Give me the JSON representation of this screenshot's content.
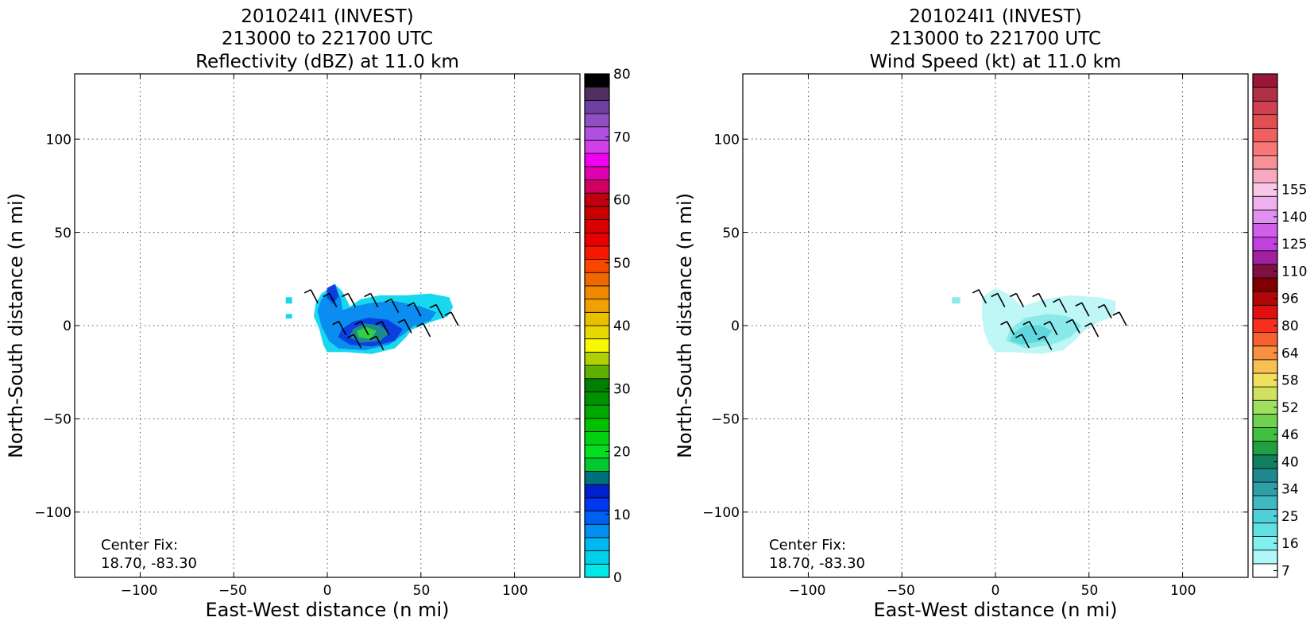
{
  "chart_data": [
    {
      "type": "heatmap",
      "title_lines": [
        "201024I1 (INVEST)",
        "213000 to 221700 UTC",
        "Reflectivity (dBZ) at 11.0 km"
      ],
      "xlabel": "East-West distance (n mi)",
      "ylabel": "North-South distance (n mi)",
      "xlim": [
        -135,
        135
      ],
      "ylim": [
        -135,
        135
      ],
      "xticks": [
        -100,
        -50,
        0,
        50,
        100
      ],
      "yticks": [
        100,
        50,
        0,
        -50,
        -100
      ],
      "xtick_labels": [
        "−100",
        "−50",
        "0",
        "50",
        "100"
      ],
      "ytick_labels": [
        "100",
        "50",
        "0",
        "−50",
        "−100"
      ],
      "grid": true,
      "center_fix_label": "Center Fix:",
      "center_fix_value": "18.70, -83.30",
      "colorbar": {
        "min": 0,
        "max": 80,
        "tick_values": [
          0,
          10,
          20,
          30,
          40,
          50,
          60,
          70,
          80
        ],
        "tick_labels": [
          "0",
          "10",
          "20",
          "30",
          "40",
          "50",
          "60",
          "70",
          "80"
        ],
        "colors": [
          "#00e8e8",
          "#00d0e8",
          "#00b8f0",
          "#0090f0",
          "#0060f0",
          "#0038f0",
          "#0020d0",
          "#00707a",
          "#00c830",
          "#00e020",
          "#00d010",
          "#00c000",
          "#00a800",
          "#009000",
          "#008000",
          "#60b000",
          "#b0d000",
          "#f8f800",
          "#e8d800",
          "#e8c000",
          "#f0a000",
          "#f08800",
          "#f06800",
          "#f84800",
          "#f81800",
          "#e80000",
          "#d80000",
          "#c80000",
          "#c00010",
          "#d00060",
          "#e000b0",
          "#f000f0",
          "#d040e8",
          "#b050e0",
          "#9050c0",
          "#7040a0",
          "#503060",
          "#000000"
        ]
      },
      "echo_regions": [
        {
          "level": "light_cyan",
          "color": "#18d8f0",
          "points": [
            [
              -3,
              17
            ],
            [
              4,
              22
            ],
            [
              8,
              18
            ],
            [
              12,
              10
            ],
            [
              18,
              14
            ],
            [
              28,
              16
            ],
            [
              42,
              16
            ],
            [
              55,
              17
            ],
            [
              65,
              15
            ],
            [
              67,
              10
            ],
            [
              64,
              5
            ],
            [
              55,
              2
            ],
            [
              50,
              0
            ],
            [
              45,
              -2
            ],
            [
              42,
              -6
            ],
            [
              36,
              -12
            ],
            [
              24,
              -15
            ],
            [
              10,
              -14
            ],
            [
              0,
              -14
            ],
            [
              -2,
              -10
            ],
            [
              -4,
              -2
            ],
            [
              -7,
              5
            ],
            [
              -6,
              12
            ]
          ]
        },
        {
          "level": "medium_blue",
          "color": "#0a8cf0",
          "points": [
            [
              -3,
              14
            ],
            [
              3,
              20
            ],
            [
              7,
              15
            ],
            [
              8,
              8
            ],
            [
              14,
              10
            ],
            [
              24,
              12
            ],
            [
              36,
              13
            ],
            [
              50,
              10
            ],
            [
              58,
              7
            ],
            [
              55,
              3
            ],
            [
              46,
              0
            ],
            [
              40,
              -5
            ],
            [
              33,
              -10
            ],
            [
              20,
              -13
            ],
            [
              6,
              -12
            ],
            [
              1,
              -8
            ],
            [
              -3,
              0
            ],
            [
              -5,
              8
            ]
          ]
        },
        {
          "level": "dark_blue",
          "color": "#0a40e0",
          "points": [
            [
              0,
              20
            ],
            [
              4,
              22
            ],
            [
              6,
              16
            ],
            [
              3,
              12
            ],
            [
              0,
              15
            ]
          ]
        },
        {
          "level": "dark_blue",
          "color": "#0a40e0",
          "points": [
            [
              8,
              -2
            ],
            [
              14,
              2
            ],
            [
              22,
              4
            ],
            [
              32,
              3
            ],
            [
              40,
              -2
            ],
            [
              36,
              -8
            ],
            [
              24,
              -11
            ],
            [
              12,
              -10
            ],
            [
              6,
              -6
            ]
          ]
        },
        {
          "level": "teal",
          "color": "#1d8a90",
          "points": [
            [
              14,
              -2
            ],
            [
              20,
              1
            ],
            [
              28,
              0
            ],
            [
              33,
              -4
            ],
            [
              28,
              -8
            ],
            [
              18,
              -9
            ],
            [
              12,
              -6
            ]
          ]
        },
        {
          "level": "green",
          "color": "#30d040",
          "points": [
            [
              16,
              -3
            ],
            [
              21,
              -1
            ],
            [
              26,
              -3
            ],
            [
              23,
              -7
            ],
            [
              17,
              -6
            ]
          ]
        },
        {
          "level": "speck",
          "color": "#18d8f0",
          "points": [
            [
              -22,
              15
            ],
            [
              -19,
              15
            ],
            [
              -19,
              12
            ],
            [
              -22,
              12
            ]
          ]
        },
        {
          "level": "speck",
          "color": "#18d8f0",
          "points": [
            [
              -22,
              6
            ],
            [
              -19,
              6
            ],
            [
              -19,
              4
            ],
            [
              -22,
              4
            ]
          ]
        }
      ],
      "wind_barbs": [
        [
          -5,
          12
        ],
        [
          5,
          10
        ],
        [
          15,
          10
        ],
        [
          27,
          10
        ],
        [
          38,
          7
        ],
        [
          50,
          5
        ],
        [
          62,
          4
        ],
        [
          70,
          0
        ],
        [
          10,
          -5
        ],
        [
          22,
          -5
        ],
        [
          33,
          -5
        ],
        [
          45,
          -4
        ],
        [
          55,
          -6
        ],
        [
          18,
          -12
        ],
        [
          30,
          -13
        ]
      ]
    },
    {
      "type": "heatmap",
      "title_lines": [
        "201024I1 (INVEST)",
        "213000 to 221700 UTC",
        "Wind Speed (kt) at 11.0 km"
      ],
      "xlabel": "East-West distance (n mi)",
      "ylabel": "North-South distance (n mi)",
      "xlim": [
        -135,
        135
      ],
      "ylim": [
        -135,
        135
      ],
      "xticks": [
        -100,
        -50,
        0,
        50,
        100
      ],
      "yticks": [
        100,
        50,
        0,
        -50,
        -100
      ],
      "xtick_labels": [
        "−100",
        "−50",
        "0",
        "50",
        "100"
      ],
      "ytick_labels": [
        "100",
        "50",
        "0",
        "−50",
        "−100"
      ],
      "grid": true,
      "center_fix_label": "Center Fix:",
      "center_fix_value": "18.70, -83.30",
      "colorbar": {
        "min": 0,
        "max": 160,
        "tick_values": [
          7,
          16,
          25,
          34,
          40,
          46,
          52,
          58,
          64,
          80,
          96,
          110,
          125,
          140,
          155
        ],
        "tick_labels": [
          "7",
          "16",
          "25",
          "34",
          "40",
          "46",
          "52",
          "58",
          "64",
          "80",
          "96",
          "110",
          "125",
          "140",
          "155"
        ],
        "tick_slots": [
          0.5,
          2.5,
          4.5,
          6.5,
          8.5,
          10.5,
          12.5,
          14.5,
          16.5,
          18.5,
          20.5,
          22.5,
          24.5,
          26.5,
          28.5
        ],
        "colors": [
          "#ffffff",
          "#b0f8f8",
          "#80f0f0",
          "#60e0e0",
          "#50d0d8",
          "#40b8c0",
          "#30a0a8",
          "#208890",
          "#108060",
          "#20a040",
          "#40c040",
          "#70d050",
          "#a0e060",
          "#d0e060",
          "#f0e060",
          "#f8c050",
          "#f89040",
          "#f86030",
          "#f83020",
          "#e01010",
          "#b00808",
          "#800000",
          "#801040",
          "#a020a0",
          "#c040e0",
          "#d060e8",
          "#e090f0",
          "#f0b0f0",
          "#f8c8e8",
          "#f8a8c0",
          "#f89098",
          "#f87878",
          "#f06060",
          "#e05050",
          "#d04050",
          "#b03048",
          "#981838"
        ]
      },
      "echo_regions": [
        {
          "level": "pale_cyan",
          "color": "#bff6f6",
          "points": [
            [
              -7,
              15
            ],
            [
              0,
              20
            ],
            [
              8,
              16
            ],
            [
              14,
              10
            ],
            [
              26,
              14
            ],
            [
              40,
              16
            ],
            [
              55,
              15
            ],
            [
              64,
              13
            ],
            [
              64,
              6
            ],
            [
              55,
              2
            ],
            [
              48,
              -2
            ],
            [
              42,
              -8
            ],
            [
              36,
              -13
            ],
            [
              24,
              -15
            ],
            [
              10,
              -14
            ],
            [
              0,
              -14
            ],
            [
              -3,
              -10
            ],
            [
              -6,
              -3
            ],
            [
              -7,
              5
            ]
          ]
        },
        {
          "level": "light_cyan",
          "color": "#8aeaea",
          "points": [
            [
              8,
              -2
            ],
            [
              16,
              4
            ],
            [
              28,
              6
            ],
            [
              38,
              5
            ],
            [
              46,
              0
            ],
            [
              40,
              -6
            ],
            [
              30,
              -10
            ],
            [
              16,
              -12
            ],
            [
              6,
              -8
            ]
          ]
        },
        {
          "level": "mid_cyan",
          "color": "#5ed8dc",
          "points": [
            [
              10,
              -4
            ],
            [
              16,
              0
            ],
            [
              24,
              0
            ],
            [
              30,
              -3
            ],
            [
              26,
              -8
            ],
            [
              14,
              -10
            ],
            [
              8,
              -8
            ]
          ]
        },
        {
          "level": "speck",
          "color": "#8aeaea",
          "points": [
            [
              -23,
              15
            ],
            [
              -19,
              15
            ],
            [
              -19,
              12
            ],
            [
              -23,
              12
            ]
          ]
        }
      ],
      "wind_barbs": [
        [
          -5,
          12
        ],
        [
          5,
          10
        ],
        [
          15,
          10
        ],
        [
          27,
          10
        ],
        [
          38,
          7
        ],
        [
          50,
          5
        ],
        [
          62,
          4
        ],
        [
          70,
          0
        ],
        [
          10,
          -5
        ],
        [
          22,
          -5
        ],
        [
          33,
          -5
        ],
        [
          45,
          -4
        ],
        [
          55,
          -6
        ],
        [
          18,
          -12
        ],
        [
          30,
          -13
        ]
      ]
    }
  ]
}
